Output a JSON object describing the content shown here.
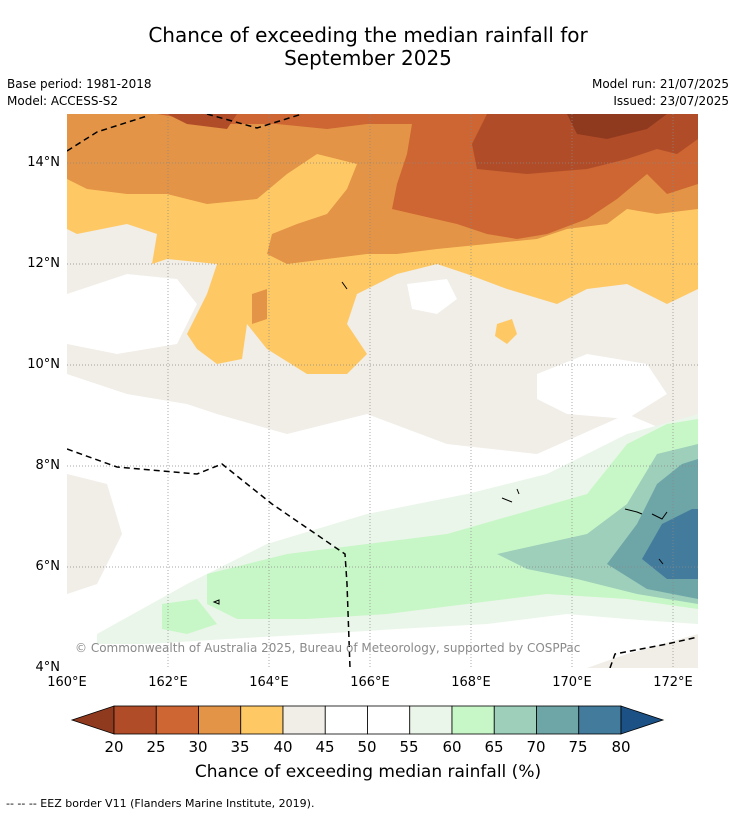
{
  "title_line1": "Chance of exceeding the median rainfall for",
  "title_line2": "September 2025",
  "base_period": "Base period: 1981-2018",
  "model": "Model: ACCESS-S2",
  "model_run": "Model run: 21/07/2025",
  "issued": "Issued: 23/07/2025",
  "copyright": "© Commonwealth of Australia 2025, Bureau of Meteorology, supported by COSPPac",
  "lat_ticks": [
    "14°N",
    "12°N",
    "10°N",
    "8°N",
    "6°N",
    "4°N"
  ],
  "lon_ticks": [
    "160°E",
    "162°E",
    "164°E",
    "166°E",
    "168°E",
    "170°E",
    "172°E"
  ],
  "colorbar": {
    "title": "Chance of exceeding median rainfall (%)",
    "ticks": [
      "20",
      "25",
      "30",
      "35",
      "40",
      "45",
      "50",
      "55",
      "60",
      "65",
      "70",
      "75",
      "80"
    ],
    "colors": [
      "#8f3a1f",
      "#b04d28",
      "#cd6632",
      "#e39446",
      "#fec964",
      "#f1ede7",
      "#ffffff",
      "#ffffff",
      "#eaf6e9",
      "#c8f7c7",
      "#9dcfba",
      "#6ea5a7",
      "#437b9d",
      "#1c5185"
    ]
  },
  "footer": "--  --  -- EEZ border V11 (Flanders Marine Institute, 2019).",
  "map": {
    "lat_range": [
      4,
      15
    ],
    "lon_range": [
      160,
      172.5
    ]
  }
}
